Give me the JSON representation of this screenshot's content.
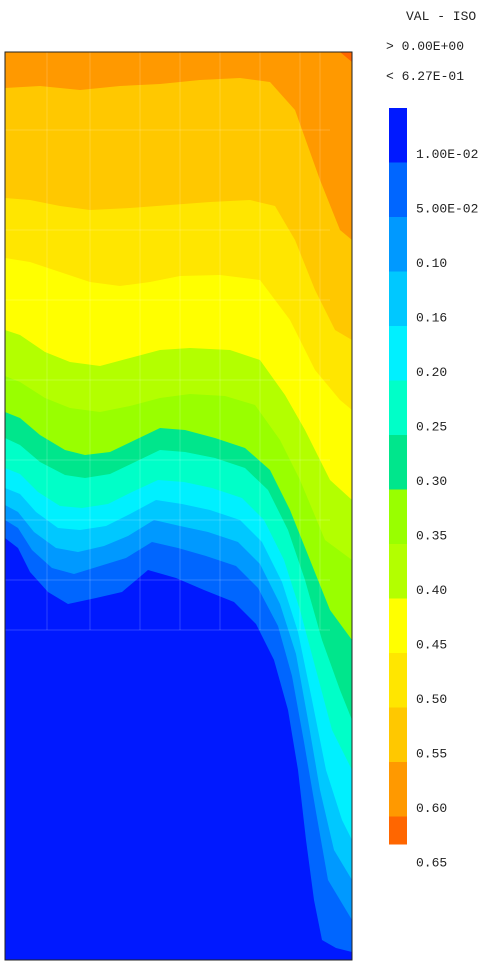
{
  "chart_data": {
    "type": "heatmap",
    "title": "VAL - ISO",
    "range_min_text": "> 0.00E+00",
    "range_max_text": "< 6.27E-01",
    "value_min": 0.0,
    "value_max": 0.627,
    "legend_placement": "right",
    "legend": {
      "colors": [
        "#0019ff",
        "#0066ff",
        "#0099ff",
        "#00c8ff",
        "#00f0ff",
        "#00ffc8",
        "#00e68c",
        "#99ff00",
        "#b3ff00",
        "#ffff00",
        "#ffe600",
        "#ffc800",
        "#ff9900",
        "#ff6600"
      ],
      "labels": [
        "1.00E-02",
        "5.00E-02",
        "0.10",
        "0.16",
        "0.20",
        "0.25",
        "0.30",
        "0.35",
        "0.40",
        "0.45",
        "0.50",
        "0.55",
        "0.60",
        "0.65"
      ]
    },
    "contour_levels": [
      0.01,
      0.05,
      0.1,
      0.16,
      0.2,
      0.25,
      0.3,
      0.35,
      0.4,
      0.45,
      0.5,
      0.55,
      0.6,
      0.65
    ],
    "contour_colors": [
      "#0019ff",
      "#0066ff",
      "#0099ff",
      "#00c8ff",
      "#00f0ff",
      "#00ffc8",
      "#00e68c",
      "#99ff00",
      "#b3ff00",
      "#ffff00",
      "#ffe600",
      "#ffc800",
      "#ff9900",
      "#ff6600"
    ]
  }
}
